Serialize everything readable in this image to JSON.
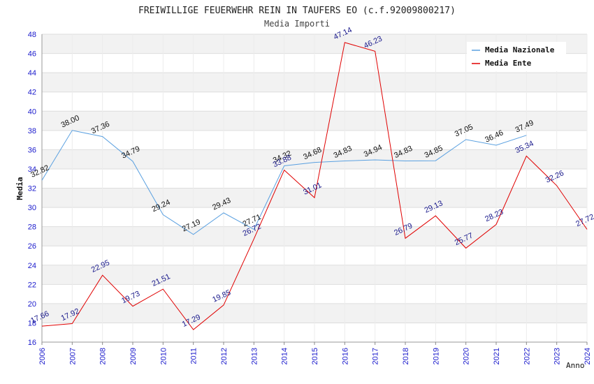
{
  "colors": {
    "nazionale": "#5aa0e0",
    "ente": "#e00000",
    "band": "#f2f2f2",
    "grid": "#dddddd",
    "tick": "#1a1acc"
  },
  "chart_data": {
    "type": "line",
    "title": "FREIWILLIGE FEUERWEHR REIN IN TAUFERS EO (c.f.92009800217)",
    "subtitle": "Media Importi",
    "xlabel": "Anno",
    "ylabel": "Media",
    "ylim": [
      16,
      48
    ],
    "yticks": [
      16,
      18,
      20,
      22,
      24,
      26,
      28,
      30,
      32,
      34,
      36,
      38,
      40,
      42,
      44,
      46,
      48
    ],
    "x": [
      "2006",
      "2007",
      "2008",
      "2009",
      "2010",
      "2011",
      "2012",
      "2013",
      "2014",
      "2015",
      "2016",
      "2017",
      "2018",
      "2019",
      "2020",
      "2021",
      "2022",
      "2023",
      "2024"
    ],
    "legend_position": "top-right",
    "grid": true,
    "series": [
      {
        "name": "Media Nazionale",
        "color": "#5aa0e0",
        "values": [
          32.82,
          38.0,
          37.36,
          34.79,
          29.24,
          27.19,
          29.43,
          27.71,
          34.32,
          34.68,
          34.83,
          34.94,
          34.83,
          34.85,
          37.05,
          36.46,
          37.49,
          null,
          null
        ],
        "labels": [
          "32.82",
          "38.00",
          "37.36",
          "34.79",
          "29.24",
          "27.19",
          "29.43",
          "27.71",
          "34.32",
          "34.68",
          "34.83",
          "34.94",
          "34.83",
          "34.85",
          "37.05",
          "36.46",
          "37.49",
          "",
          ""
        ]
      },
      {
        "name": "Media Ente",
        "color": "#e00000",
        "values": [
          17.66,
          17.92,
          22.95,
          19.73,
          21.51,
          17.29,
          19.85,
          26.72,
          33.88,
          31.01,
          47.14,
          46.23,
          26.79,
          29.13,
          25.77,
          28.23,
          35.34,
          32.26,
          27.72
        ],
        "labels": [
          "17.66",
          "17.92",
          "22.95",
          "19.73",
          "21.51",
          "17.29",
          "19.85",
          "26.72",
          "33.88",
          "31.01",
          "47.14",
          "46.23",
          "26.79",
          "29.13",
          "25.77",
          "28.23",
          "35.34",
          "32.26",
          "27.72"
        ]
      }
    ]
  }
}
